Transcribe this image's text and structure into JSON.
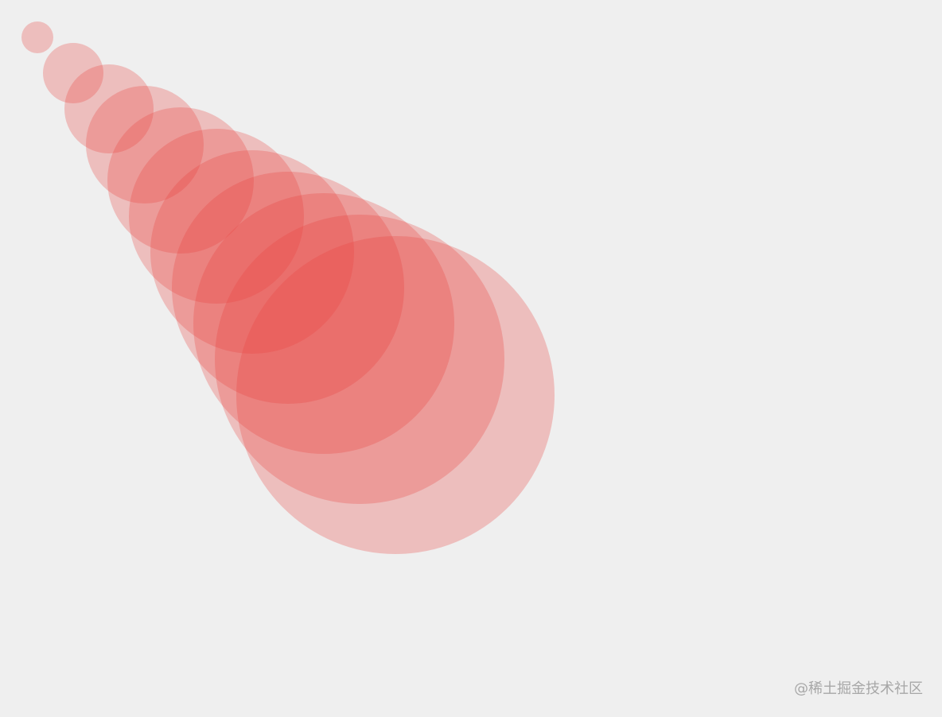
{
  "canvas": {
    "background_color": "#efefef",
    "circle_color": "#e8403c",
    "circle_count": 11,
    "circle_opacity": 0.28
  },
  "watermark": {
    "text": "@稀土掘金技术社区",
    "color": "#a7a7a7"
  }
}
